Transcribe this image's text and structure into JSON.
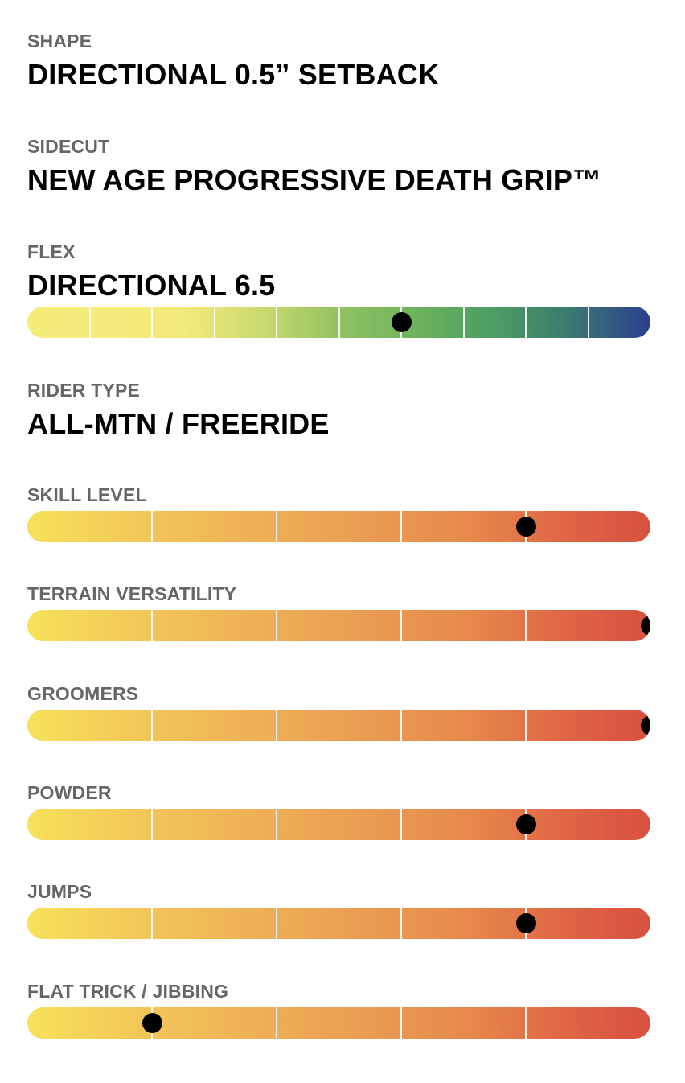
{
  "specs": {
    "shape": {
      "label": "SHAPE",
      "value": "DIRECTIONAL 0.5” SETBACK"
    },
    "sidecut": {
      "label": "SIDECUT",
      "value": "NEW AGE PROGRESSIVE DEATH GRIP™"
    },
    "flex": {
      "label": "FLEX",
      "value": "DIRECTIONAL 6.5",
      "segments": 10,
      "rating": 6.5
    },
    "rider_type": {
      "label": "RIDER TYPE",
      "value": "ALL-MTN / FREERIDE"
    }
  },
  "ratings": [
    {
      "label": "SKILL LEVEL",
      "segments": 5,
      "rating": 4.5
    },
    {
      "label": "TERRAIN VERSATILITY",
      "segments": 5,
      "rating": 5.5
    },
    {
      "label": "GROOMERS",
      "segments": 5,
      "rating": 5.5
    },
    {
      "label": "POWDER",
      "segments": 5,
      "rating": 4.5
    },
    {
      "label": "JUMPS",
      "segments": 5,
      "rating": 4.5
    },
    {
      "label": "FLAT TRICK / JIBBING",
      "segments": 5,
      "rating": 1.5
    }
  ],
  "colors": {
    "label": "#666666",
    "value": "#000000",
    "marker": "#000000"
  }
}
